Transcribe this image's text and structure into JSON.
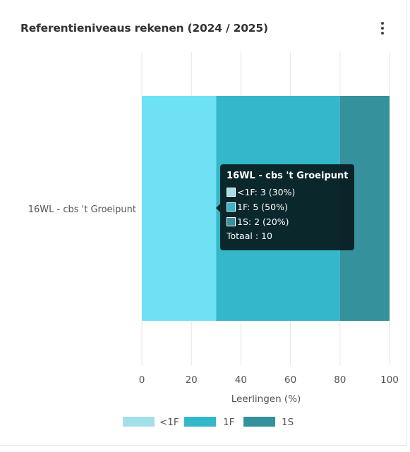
{
  "card": {
    "title": "Referentieniveaus rekenen (2024 / 2025)",
    "menu_icon": "more-vert-icon"
  },
  "chart_data": {
    "type": "bar",
    "orientation": "horizontal",
    "stacked": true,
    "title": "Referentieniveaus rekenen (2024 / 2025)",
    "categories": [
      "16WL - cbs 't Groeipunt"
    ],
    "series": [
      {
        "name": "<1F",
        "values": [
          30
        ],
        "count": [
          3
        ],
        "color": "#6ee2f4"
      },
      {
        "name": "1F",
        "values": [
          50
        ],
        "count": [
          5
        ],
        "color": "#34b8c9"
      },
      {
        "name": "1S",
        "values": [
          20
        ],
        "count": [
          2
        ],
        "color": "#35919c"
      }
    ],
    "legend_colors": [
      "#a3dfe6",
      "#34b8c9",
      "#35919c"
    ],
    "xlabel": "Leerlingen (%)",
    "ylabel": "",
    "xlim": [
      0,
      100
    ],
    "xticks": [
      0,
      20,
      40,
      60,
      80,
      100
    ],
    "grid": true,
    "legend_position": "bottom"
  },
  "tooltip": {
    "title": "16WL - cbs 't Groeipunt",
    "rows": [
      {
        "text": "<1F: 3 (30%)",
        "color": "#a3dfe6"
      },
      {
        "text": "1F: 5 (50%)",
        "color": "#34b8c9"
      },
      {
        "text": "1S: 2 (20%)",
        "color": "#35919c"
      }
    ],
    "total": "Totaal : 10"
  },
  "colors": {
    "gridline": "#e5e5e5",
    "axis_text": "#555555",
    "tooltip_bg": "#081c20"
  }
}
